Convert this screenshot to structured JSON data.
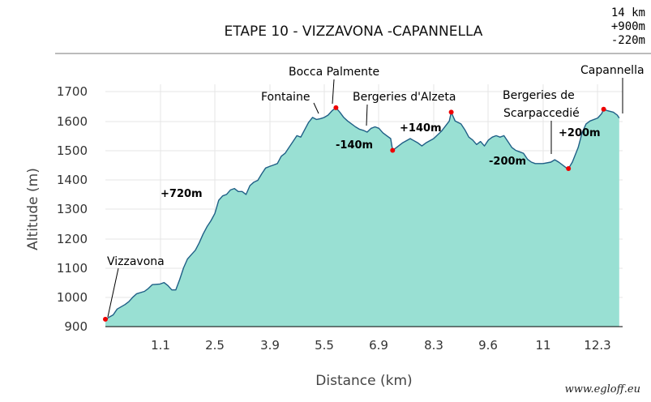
{
  "stats": [
    "14 km",
    "+900m",
    "-220m"
  ],
  "watermark": "www.egloff.eu",
  "chart_data": {
    "type": "area",
    "title": "ETAPE 10 - VIZZAVONA -CAPANNELLA",
    "xlabel": "Distance (km)",
    "ylabel": "Altitude (m)",
    "xlim": [
      0,
      14
    ],
    "ylim": [
      900,
      1700
    ],
    "x_ticks": [
      "1.1",
      "2.5",
      "3.9",
      "5.5",
      "6.9",
      "8.3",
      "9.6",
      "11",
      "12.3"
    ],
    "y_ticks": [
      "900",
      "1000",
      "1100",
      "1200",
      "1300",
      "1400",
      "1500",
      "1600",
      "1700"
    ],
    "grid": true,
    "fill_color": "#99e0d3",
    "line_color": "#1f5f86",
    "marker_color": "#ee0000",
    "profile": [
      [
        0.0,
        925
      ],
      [
        0.2,
        940
      ],
      [
        0.3,
        960
      ],
      [
        0.5,
        975
      ],
      [
        0.6,
        985
      ],
      [
        0.7,
        1000
      ],
      [
        0.8,
        1012
      ],
      [
        1.0,
        1020
      ],
      [
        1.1,
        1030
      ],
      [
        1.2,
        1043
      ],
      [
        1.4,
        1045
      ],
      [
        1.5,
        1050
      ],
      [
        1.6,
        1040
      ],
      [
        1.7,
        1025
      ],
      [
        1.8,
        1025
      ],
      [
        1.9,
        1060
      ],
      [
        2.0,
        1100
      ],
      [
        2.1,
        1130
      ],
      [
        2.2,
        1145
      ],
      [
        2.3,
        1160
      ],
      [
        2.4,
        1185
      ],
      [
        2.5,
        1215
      ],
      [
        2.6,
        1240
      ],
      [
        2.7,
        1260
      ],
      [
        2.8,
        1285
      ],
      [
        2.9,
        1330
      ],
      [
        3.0,
        1345
      ],
      [
        3.1,
        1350
      ],
      [
        3.2,
        1365
      ],
      [
        3.3,
        1370
      ],
      [
        3.4,
        1360
      ],
      [
        3.5,
        1360
      ],
      [
        3.6,
        1350
      ],
      [
        3.7,
        1380
      ],
      [
        3.8,
        1392
      ],
      [
        3.9,
        1398
      ],
      [
        4.0,
        1420
      ],
      [
        4.1,
        1440
      ],
      [
        4.2,
        1445
      ],
      [
        4.3,
        1450
      ],
      [
        4.4,
        1455
      ],
      [
        4.5,
        1480
      ],
      [
        4.6,
        1490
      ],
      [
        4.7,
        1510
      ],
      [
        4.8,
        1530
      ],
      [
        4.9,
        1550
      ],
      [
        5.0,
        1545
      ],
      [
        5.1,
        1570
      ],
      [
        5.2,
        1595
      ],
      [
        5.3,
        1612
      ],
      [
        5.4,
        1605
      ],
      [
        5.5,
        1608
      ],
      [
        5.6,
        1612
      ],
      [
        5.7,
        1620
      ],
      [
        5.8,
        1635
      ],
      [
        5.9,
        1645
      ],
      [
        6.0,
        1630
      ],
      [
        6.1,
        1612
      ],
      [
        6.2,
        1600
      ],
      [
        6.3,
        1590
      ],
      [
        6.4,
        1580
      ],
      [
        6.5,
        1572
      ],
      [
        6.6,
        1568
      ],
      [
        6.7,
        1562
      ],
      [
        6.8,
        1575
      ],
      [
        6.9,
        1580
      ],
      [
        7.0,
        1575
      ],
      [
        7.1,
        1560
      ],
      [
        7.2,
        1550
      ],
      [
        7.3,
        1540
      ],
      [
        7.35,
        1500
      ],
      [
        7.45,
        1510
      ],
      [
        7.6,
        1525
      ],
      [
        7.8,
        1540
      ],
      [
        8.0,
        1525
      ],
      [
        8.1,
        1515
      ],
      [
        8.2,
        1525
      ],
      [
        8.4,
        1540
      ],
      [
        8.6,
        1565
      ],
      [
        8.8,
        1600
      ],
      [
        8.85,
        1630
      ],
      [
        8.95,
        1600
      ],
      [
        9.1,
        1590
      ],
      [
        9.2,
        1570
      ],
      [
        9.3,
        1545
      ],
      [
        9.4,
        1535
      ],
      [
        9.5,
        1520
      ],
      [
        9.6,
        1530
      ],
      [
        9.7,
        1515
      ],
      [
        9.8,
        1535
      ],
      [
        9.9,
        1545
      ],
      [
        10.0,
        1550
      ],
      [
        10.1,
        1545
      ],
      [
        10.2,
        1550
      ],
      [
        10.3,
        1530
      ],
      [
        10.4,
        1510
      ],
      [
        10.5,
        1500
      ],
      [
        10.6,
        1495
      ],
      [
        10.7,
        1490
      ],
      [
        10.8,
        1470
      ],
      [
        10.9,
        1460
      ],
      [
        11.0,
        1455
      ],
      [
        11.2,
        1455
      ],
      [
        11.4,
        1460
      ],
      [
        11.5,
        1468
      ],
      [
        11.6,
        1460
      ],
      [
        11.7,
        1450
      ],
      [
        11.8,
        1440
      ],
      [
        11.85,
        1438
      ],
      [
        11.95,
        1460
      ],
      [
        12.1,
        1510
      ],
      [
        12.2,
        1560
      ],
      [
        12.3,
        1590
      ],
      [
        12.4,
        1600
      ],
      [
        12.6,
        1610
      ],
      [
        12.7,
        1625
      ],
      [
        12.75,
        1640
      ],
      [
        12.85,
        1635
      ],
      [
        13.0,
        1630
      ],
      [
        13.1,
        1620
      ],
      [
        13.15,
        1610
      ]
    ],
    "markers": [
      {
        "x": 0.0,
        "y": 925
      },
      {
        "x": 5.9,
        "y": 1645
      },
      {
        "x": 7.35,
        "y": 1500
      },
      {
        "x": 8.85,
        "y": 1630
      },
      {
        "x": 11.85,
        "y": 1438
      },
      {
        "x": 12.75,
        "y": 1640
      }
    ],
    "place_labels": [
      {
        "text": "Vizzavona"
      },
      {
        "text": "Fontaine"
      },
      {
        "text": "Bocca Palmente"
      },
      {
        "text": "Bergeries d'Alzeta"
      },
      {
        "text": "Bergeries de"
      },
      {
        "text": "Scarpaccedié"
      },
      {
        "text": "Capannella"
      }
    ],
    "elevation_annotations": [
      "+720m",
      "-140m",
      "+140m",
      "-200m",
      "+200m"
    ]
  }
}
